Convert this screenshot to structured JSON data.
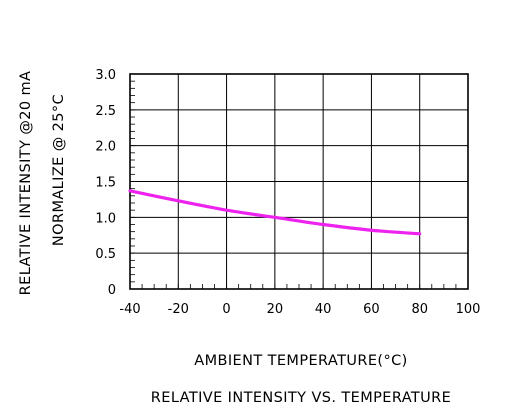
{
  "chart_data": {
    "type": "line",
    "title": "RELATIVE INTENSITY VS. TEMPERATURE",
    "xlabel": "AMBIENT TEMPERATURE(°C)",
    "ylabel_line1": "RELATIVE INTENSITY @20 mA",
    "ylabel_line2": "NORMALIZE @ 25°C",
    "xlim": [
      -40,
      100
    ],
    "ylim": [
      0,
      3.0
    ],
    "x_ticks": [
      "-40",
      "-20",
      "0",
      "20",
      "40",
      "60",
      "80",
      "100"
    ],
    "y_ticks": [
      "0",
      "0.5",
      "1.0",
      "1.5",
      "2.0",
      "2.5",
      "3.0"
    ],
    "grid": true,
    "series": [
      {
        "color": "#ee22ee",
        "x": [
          -40,
          -20,
          0,
          20,
          40,
          60,
          80
        ],
        "y": [
          1.37,
          1.23,
          1.1,
          1.0,
          0.9,
          0.82,
          0.77
        ]
      }
    ]
  }
}
